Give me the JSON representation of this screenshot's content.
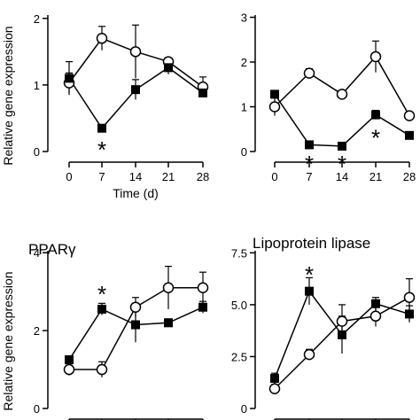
{
  "figure": {
    "ylabel": "Relative gene expression",
    "xlabel": "Time (d)"
  },
  "chart_data": [
    {
      "type": "line",
      "title": "",
      "xlabel": "Time (d)",
      "ylabel": "Relative gene expression",
      "x": [
        0,
        7,
        14,
        21,
        28
      ],
      "xlim": [
        -2,
        30
      ],
      "ylim": [
        0,
        2.05
      ],
      "yticks": [
        0,
        1,
        2
      ],
      "ytick_labels": [
        "0",
        "1",
        "2"
      ],
      "series": [
        {
          "marker": "open-circle",
          "values": [
            1.03,
            1.7,
            1.5,
            1.35,
            0.97
          ],
          "errors": [
            0.15,
            0.18,
            0.4,
            0.05,
            0.15
          ]
        },
        {
          "marker": "filled-square",
          "values": [
            1.1,
            0.35,
            0.93,
            1.26,
            0.88
          ],
          "errors": [
            0.25,
            0.05,
            0.15,
            0.1,
            0.05
          ]
        }
      ],
      "annotations": [
        {
          "x": 7,
          "y": 0.12,
          "text": "*"
        }
      ]
    },
    {
      "type": "line",
      "title": "",
      "xlabel": "",
      "ylabel": "",
      "x": [
        0,
        7,
        14,
        21,
        28
      ],
      "xlim": [
        -2,
        30
      ],
      "ylim": [
        0,
        3.05
      ],
      "yticks": [
        0,
        1,
        2,
        3
      ],
      "ytick_labels": [
        "0",
        "1",
        "2",
        "3"
      ],
      "series": [
        {
          "marker": "open-circle",
          "values": [
            1.0,
            1.75,
            1.28,
            2.12,
            0.8
          ],
          "errors": [
            0.2,
            0.1,
            0.05,
            0.35,
            0.08
          ]
        },
        {
          "marker": "filled-square",
          "values": [
            1.28,
            0.15,
            0.12,
            0.82,
            0.36
          ],
          "errors": [
            0.05,
            0.05,
            0.04,
            0.1,
            0.08
          ]
        }
      ],
      "annotations": [
        {
          "x": 7,
          "y": -0.18,
          "text": "*"
        },
        {
          "x": 14,
          "y": -0.18,
          "text": "*"
        },
        {
          "x": 21,
          "y": 0.45,
          "text": "*"
        }
      ]
    },
    {
      "type": "line",
      "title": "PPARγ",
      "xlabel": "",
      "ylabel": "Relative gene expression",
      "x": [
        0,
        7,
        14,
        21,
        28
      ],
      "xlim": [
        -2,
        30
      ],
      "ylim": [
        0,
        4.05
      ],
      "yticks": [
        0,
        2,
        4
      ],
      "ytick_labels": [
        "0",
        "2",
        "4"
      ],
      "series": [
        {
          "marker": "open-circle",
          "values": [
            1.0,
            1.0,
            2.6,
            3.1,
            3.1
          ],
          "errors": [
            0.15,
            0.2,
            0.25,
            0.55,
            0.4
          ]
        },
        {
          "marker": "filled-square",
          "values": [
            1.25,
            2.55,
            2.15,
            2.2,
            2.6
          ],
          "errors": [
            0.1,
            0.15,
            0.45,
            0.1,
            0.15
          ]
        }
      ],
      "annotations": [
        {
          "x": 7,
          "y": 3.1,
          "text": "*"
        }
      ]
    },
    {
      "type": "line",
      "title": "Lipoprotein lipase",
      "xlabel": "",
      "ylabel": "",
      "x": [
        0,
        7,
        14,
        21,
        28
      ],
      "xlim": [
        -2,
        30
      ],
      "ylim": [
        0,
        7.6
      ],
      "yticks": [
        0,
        2.5,
        5.0,
        7.5
      ],
      "ytick_labels": [
        "0",
        "2.5",
        "5.0",
        "7.5"
      ],
      "series": [
        {
          "marker": "open-circle",
          "values": [
            0.95,
            2.6,
            4.2,
            4.45,
            5.35
          ],
          "errors": [
            0.2,
            0.25,
            0.8,
            0.5,
            0.9
          ]
        },
        {
          "marker": "filled-square",
          "values": [
            1.45,
            5.65,
            3.55,
            5.05,
            4.55
          ],
          "errors": [
            0.25,
            0.65,
            0.9,
            0.3,
            0.4
          ]
        }
      ],
      "annotations": [
        {
          "x": 7,
          "y": 6.75,
          "text": "*"
        }
      ]
    }
  ]
}
